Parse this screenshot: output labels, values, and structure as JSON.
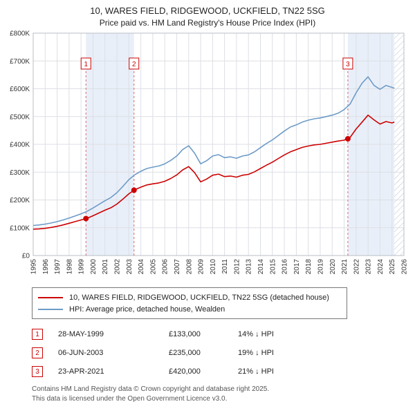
{
  "title": "10, WARES FIELD, RIDGEWOOD, UCKFIELD, TN22 5SG",
  "subtitle": "Price paid vs. HM Land Registry's House Price Index (HPI)",
  "chart_data": {
    "type": "line",
    "title": "10, WARES FIELD, RIDGEWOOD, UCKFIELD, TN22 5SG — Price paid vs. HM Land Registry's House Price Index (HPI)",
    "xlabel": "",
    "ylabel": "",
    "x_range": [
      1995,
      2026
    ],
    "y_range": [
      0,
      800000
    ],
    "y_tick_step": 100000,
    "y_ticks": [
      "£0",
      "£100K",
      "£200K",
      "£300K",
      "£400K",
      "£500K",
      "£600K",
      "£700K",
      "£800K"
    ],
    "x_ticks": [
      1995,
      1996,
      1997,
      1998,
      1999,
      2000,
      2001,
      2002,
      2003,
      2004,
      2005,
      2006,
      2007,
      2008,
      2009,
      2010,
      2011,
      2012,
      2013,
      2014,
      2015,
      2016,
      2017,
      2018,
      2019,
      2020,
      2021,
      2022,
      2023,
      2024,
      2025,
      2026
    ],
    "grid": true,
    "legend_position": "bottom",
    "band_color": "#e9eff9",
    "accent_color": "#cc0000",
    "series": [
      {
        "name": "10, WARES FIELD, RIDGEWOOD, UCKFIELD, TN22 5SG (detached house)",
        "color": "#cc0000",
        "x": [
          1995,
          1995.5,
          1996,
          1996.5,
          1997,
          1997.5,
          1998,
          1998.5,
          1999,
          1999.5,
          2000,
          2000.5,
          2001,
          2001.5,
          2002,
          2002.5,
          2003,
          2003.5,
          2004,
          2004.5,
          2005,
          2005.5,
          2006,
          2006.5,
          2007,
          2007.5,
          2008,
          2008.5,
          2009,
          2009.5,
          2010,
          2010.5,
          2011,
          2011.5,
          2012,
          2012.5,
          2013,
          2013.5,
          2014,
          2014.5,
          2015,
          2015.5,
          2016,
          2016.5,
          2017,
          2017.5,
          2018,
          2018.5,
          2019,
          2019.5,
          2020,
          2020.5,
          2021,
          2021.5,
          2022,
          2022.5,
          2023,
          2023.5,
          2024,
          2024.5,
          2025,
          2025.2
        ],
        "values": [
          95000,
          96000,
          98000,
          101000,
          105000,
          110000,
          116000,
          122000,
          128000,
          134000,
          143000,
          153000,
          163000,
          172000,
          185000,
          203000,
          222000,
          237000,
          246000,
          254000,
          258000,
          261000,
          267000,
          277000,
          290000,
          308000,
          320000,
          298000,
          265000,
          275000,
          289000,
          293000,
          284000,
          286000,
          282000,
          289000,
          292000,
          301000,
          313000,
          325000,
          336000,
          349000,
          362000,
          373000,
          381000,
          389000,
          394000,
          398000,
          400000,
          404000,
          408000,
          412000,
          415000,
          425000,
          455000,
          480000,
          505000,
          488000,
          473000,
          482000,
          477000,
          480000
        ]
      },
      {
        "name": "HPI: Average price, detached house, Wealden",
        "color": "#6d9bc8",
        "x": [
          1995,
          1995.5,
          1996,
          1996.5,
          1997,
          1997.5,
          1998,
          1998.5,
          1999,
          1999.5,
          2000,
          2000.5,
          2001,
          2001.5,
          2002,
          2002.5,
          2003,
          2003.5,
          2004,
          2004.5,
          2005,
          2005.5,
          2006,
          2006.5,
          2007,
          2007.5,
          2008,
          2008.5,
          2009,
          2009.5,
          2010,
          2010.5,
          2011,
          2011.5,
          2012,
          2012.5,
          2013,
          2013.5,
          2014,
          2014.5,
          2015,
          2015.5,
          2016,
          2016.5,
          2017,
          2017.5,
          2018,
          2018.5,
          2019,
          2019.5,
          2020,
          2020.5,
          2021,
          2021.5,
          2022,
          2022.5,
          2023,
          2023.5,
          2024,
          2024.5,
          2025,
          2025.2
        ],
        "values": [
          108000,
          110000,
          113000,
          117000,
          122000,
          128000,
          135000,
          142000,
          150000,
          159000,
          171000,
          184000,
          197000,
          209000,
          226000,
          249000,
          273000,
          291000,
          303000,
          313000,
          318000,
          322000,
          330000,
          342000,
          358000,
          381000,
          395000,
          368000,
          330000,
          341000,
          358000,
          363000,
          352000,
          355000,
          350000,
          358000,
          362000,
          373000,
          388000,
          403000,
          416000,
          432000,
          448000,
          462000,
          470000,
          480000,
          487000,
          492000,
          495000,
          500000,
          505000,
          512000,
          525000,
          545000,
          585000,
          620000,
          643000,
          612000,
          598000,
          612000,
          605000,
          602000
        ]
      }
    ],
    "markers": [
      {
        "label": "1",
        "x": 1999.41,
        "value": 133000
      },
      {
        "label": "2",
        "x": 2003.43,
        "value": 235000
      },
      {
        "label": "3",
        "x": 2021.31,
        "value": 420000
      }
    ],
    "bands": [
      {
        "from": 1999.41,
        "to": 2003.43
      },
      {
        "from": 2021.31,
        "to": 2025.2
      }
    ],
    "hatch": {
      "from": 2025.2,
      "to": 2026
    }
  },
  "transactions": [
    {
      "num": "1",
      "date": "28-MAY-1999",
      "price": "£133,000",
      "hpi_diff": "14% ↓ HPI"
    },
    {
      "num": "2",
      "date": "06-JUN-2003",
      "price": "£235,000",
      "hpi_diff": "19% ↓ HPI"
    },
    {
      "num": "3",
      "date": "23-APR-2021",
      "price": "£420,000",
      "hpi_diff": "21% ↓ HPI"
    }
  ],
  "footer": {
    "line1": "Contains HM Land Registry data © Crown copyright and database right 2025.",
    "line2": "This data is licensed under the Open Government Licence v3.0."
  }
}
